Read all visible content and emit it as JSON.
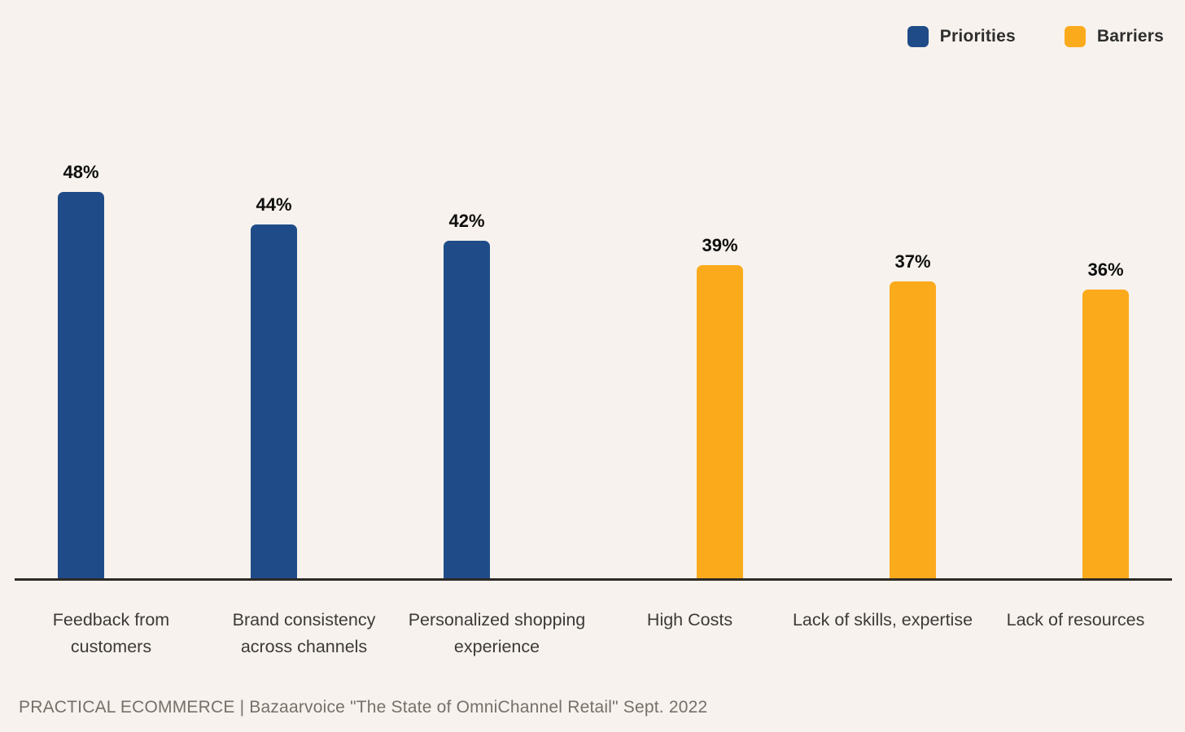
{
  "legend": {
    "items": [
      {
        "label": "Priorities",
        "color": "#1f4c88"
      },
      {
        "label": "Barriers",
        "color": "#fbaa1c"
      }
    ]
  },
  "chart_data": {
    "type": "bar",
    "categories": [
      "Feedback from customers",
      "Brand consistency across channels",
      "Personalized shopping experience",
      "High Costs",
      "Lack of skills, expertise",
      "Lack of resources"
    ],
    "series": [
      {
        "name": "Priorities",
        "color": "#1f4c88",
        "values": [
          48,
          44,
          42,
          null,
          null,
          null
        ]
      },
      {
        "name": "Barriers",
        "color": "#fbaa1c",
        "values": [
          null,
          null,
          null,
          39,
          37,
          36
        ]
      }
    ],
    "value_labels": [
      "48%",
      "44%",
      "42%",
      "39%",
      "37%",
      "36%"
    ],
    "ylabel": "",
    "xlabel": "",
    "ylim": [
      0,
      50
    ],
    "grid": "off",
    "legend_position": "top-right",
    "background_color": "#f7f2ed",
    "axis_line_color": "#2d2925"
  },
  "footer": {
    "source_text": "PRACTICAL ECOMMERCE | Bazaarvoice \"The State of OmniChannel Retail\" Sept. 2022"
  }
}
